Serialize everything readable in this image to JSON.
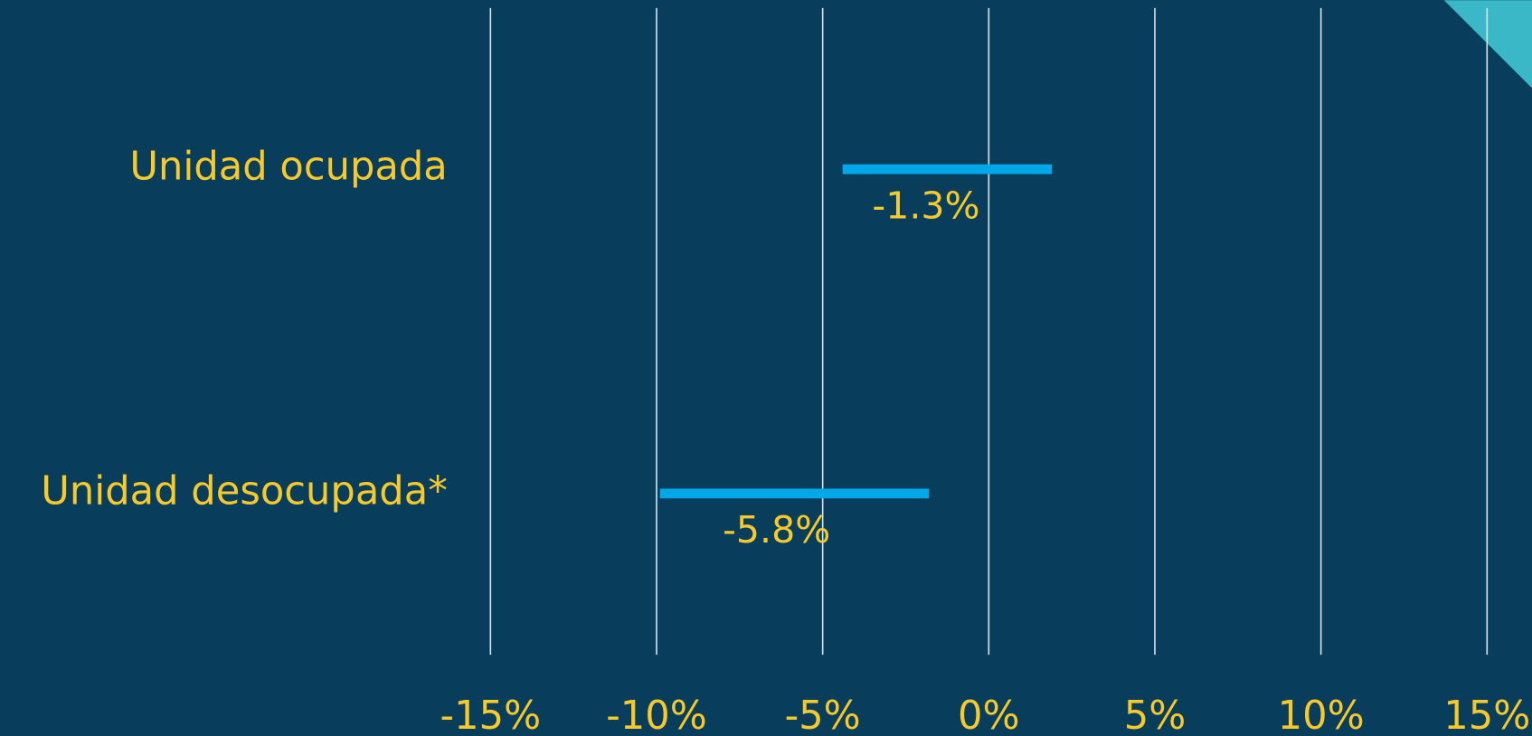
{
  "chart_data": {
    "type": "range",
    "categories": [
      "Unidad ocupada",
      "Unidad desocupada*"
    ],
    "lower": [
      -4.4,
      -9.9
    ],
    "upper": [
      1.9,
      -1.8
    ],
    "values": [
      -1.3,
      -5.8
    ],
    "value_labels": [
      "-1.3%",
      "-5.8%"
    ],
    "color": "#00a8e8",
    "xlim": [
      -15,
      15
    ],
    "xticks": [
      {
        "value": -15,
        "label": "-15%"
      },
      {
        "value": -10,
        "label": "-10%"
      },
      {
        "value": -5,
        "label": "-5%"
      },
      {
        "value": 0,
        "label": "0%"
      },
      {
        "value": 5,
        "label": "5%"
      },
      {
        "value": 10,
        "label": "10%"
      },
      {
        "value": 15,
        "label": "15%"
      }
    ],
    "grid": true
  }
}
